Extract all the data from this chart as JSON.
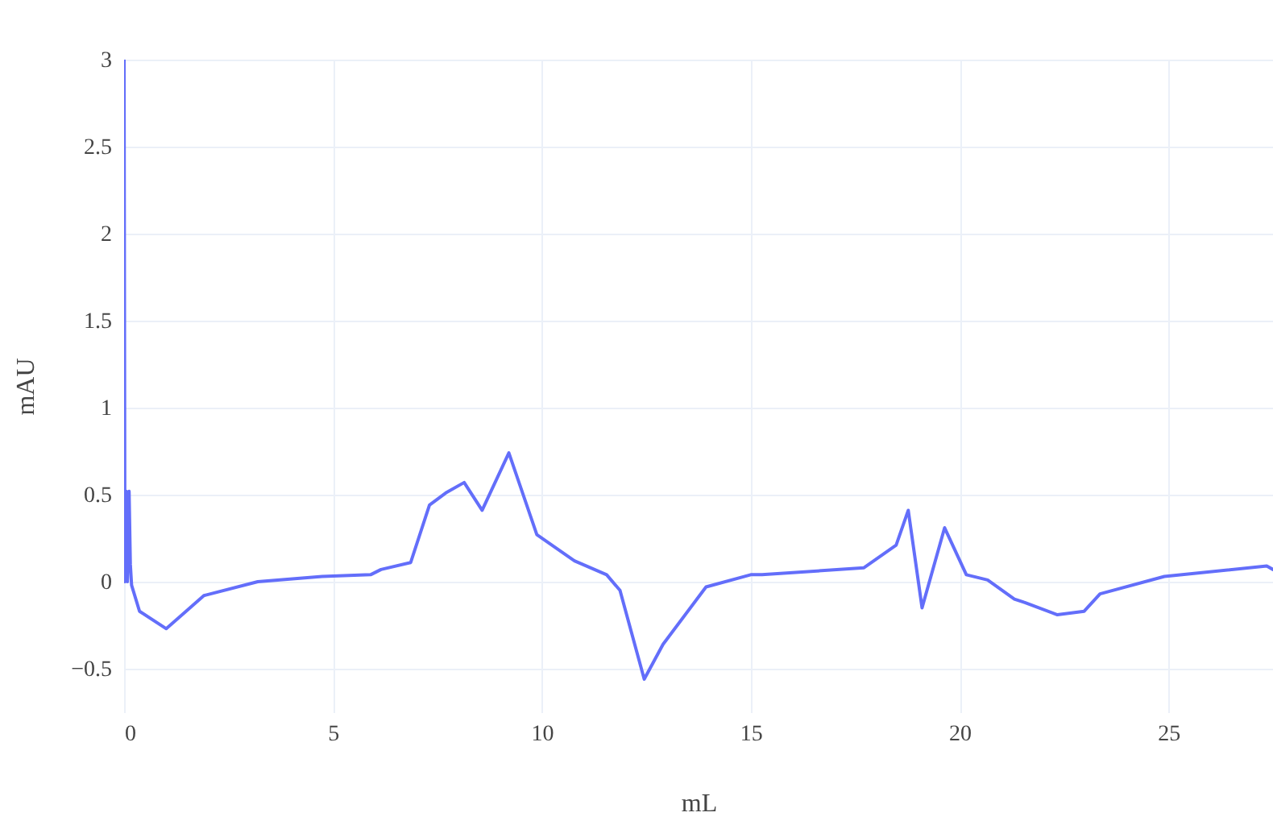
{
  "chart_data": {
    "type": "line",
    "xlabel": "mL",
    "ylabel": "mAU",
    "x": [
      0,
      0.02,
      0.05,
      0.08,
      0.12,
      0.15,
      0.18,
      0.37,
      1.01,
      1.91,
      3.2,
      4.74,
      5.9,
      6.15,
      6.86,
      7.31,
      7.7,
      8.14,
      8.57,
      9.21,
      9.88,
      10.78,
      11.55,
      11.87,
      12.45,
      12.9,
      13.93,
      15.0,
      15.27,
      17.71,
      18.48,
      18.77,
      19.1,
      19.64,
      20.16,
      20.67,
      21.31,
      21.56,
      22.34,
      22.98,
      23.36,
      24.9,
      27.35,
      27.5
    ],
    "series": [
      {
        "color": "#636efa",
        "values": [
          3.0,
          0.0,
          0.52,
          0.0,
          0.52,
          0.1,
          -0.02,
          -0.17,
          -0.27,
          -0.08,
          0.0,
          0.03,
          0.04,
          0.07,
          0.11,
          0.44,
          0.51,
          0.57,
          0.41,
          0.74,
          0.27,
          0.12,
          0.04,
          -0.05,
          -0.56,
          -0.36,
          -0.03,
          0.04,
          0.04,
          0.08,
          0.21,
          0.41,
          -0.15,
          0.31,
          0.04,
          0.01,
          -0.1,
          -0.12,
          -0.19,
          -0.17,
          -0.07,
          0.03,
          0.09,
          0.07
        ]
      }
    ],
    "xlim": [
      0,
      27.5
    ],
    "xticks": [
      0,
      5,
      10,
      15,
      20,
      25
    ],
    "ylim": [
      -0.75,
      3
    ],
    "yticks": [
      -0.5,
      0,
      0.5,
      1,
      1.5,
      2,
      2.5,
      3
    ],
    "grid": true,
    "marker": "none",
    "line_style": "solid"
  }
}
